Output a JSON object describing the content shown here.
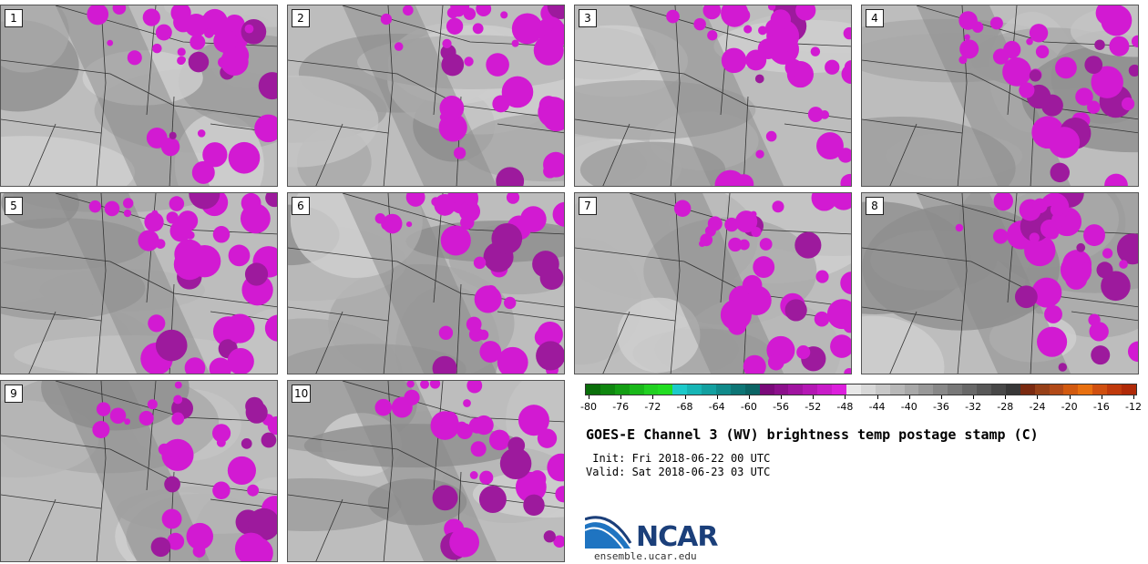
{
  "panels": [
    {
      "label": "1"
    },
    {
      "label": "2"
    },
    {
      "label": "3"
    },
    {
      "label": "4"
    },
    {
      "label": "5"
    },
    {
      "label": "6"
    },
    {
      "label": "7"
    },
    {
      "label": "8"
    },
    {
      "label": "9"
    },
    {
      "label": "10"
    }
  ],
  "colorbar": {
    "ticks": [
      "-80",
      "-76",
      "-72",
      "-68",
      "-64",
      "-60",
      "-56",
      "-52",
      "-48",
      "-44",
      "-40",
      "-36",
      "-32",
      "-28",
      "-24",
      "-20",
      "-16",
      "-12"
    ],
    "colors": [
      "#0a6e0a",
      "#0f860f",
      "#149e14",
      "#1ab81a",
      "#22d022",
      "#22dd22",
      "#1ccaca",
      "#17b5b5",
      "#13a0a0",
      "#108a8a",
      "#0d7575",
      "#0b6464",
      "#7a0a7a",
      "#8c108c",
      "#a014a0",
      "#b418b4",
      "#c81cc8",
      "#dc20dc",
      "#e8e8e8",
      "#d8d8d8",
      "#c8c8c8",
      "#b8b8b8",
      "#a8a8a8",
      "#989898",
      "#888888",
      "#787878",
      "#686868",
      "#585858",
      "#484848",
      "#383838",
      "#7a2a10",
      "#964018",
      "#b24a18",
      "#d25a10",
      "#e87010",
      "#d05010",
      "#c03a0c",
      "#b02a08"
    ]
  },
  "title": "GOES-E Channel 3 (WV) brightness temp postage stamp (C)",
  "init": " Init: Fri 2018-06-22 00 UTC",
  "valid": "Valid: Sat 2018-06-23 03 UTC",
  "logo": {
    "text": "NCAR",
    "url": "ensemble.ucar.edu"
  }
}
